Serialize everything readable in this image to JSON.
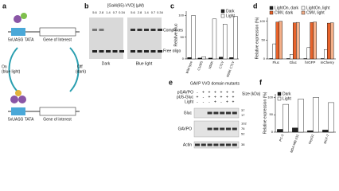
{
  "panel_a": {
    "label": "a",
    "promoter_top": "5xUASG TATA",
    "gene_top": "Gene of Interest",
    "on": "On",
    "on_note": "(blue light)",
    "off": "Off",
    "off_note": "(dark)",
    "promoter_bottom": "5xUASG TATA",
    "gene_bottom": "Gene of interest"
  },
  "panel_b": {
    "label": "b",
    "concentration_title": "[Gal4(65)-VVD] (µM)",
    "lanes": [
      "5.6",
      "2.8",
      "1.4",
      "0.7",
      "0.34"
    ],
    "gels": [
      "Dark",
      "Blue light"
    ],
    "complexes": "Complexes",
    "free_oligo": "Free oligo"
  },
  "panel_e": {
    "label": "e",
    "title": "GAVP VVD domain mutants",
    "size_title": "Size (kDa)",
    "rows": [
      {
        "name": "pGAVPO",
        "marks": [
          "-",
          "+",
          "+",
          "+",
          "+",
          "+",
          "+"
        ]
      },
      {
        "name": "pU5-Gluc",
        "marks": [
          "+",
          "-",
          "+",
          "+",
          "+",
          "+",
          "+"
        ]
      },
      {
        "name": "Light",
        "marks": [
          "-",
          "-",
          "-",
          "+",
          "-",
          "+",
          "+"
        ]
      }
    ],
    "blots": [
      {
        "name": "Gluc",
        "sizes": [
          "37",
          "17"
        ]
      },
      {
        "name": "GAVPO",
        "sizes": [
          "102",
          "76",
          "52"
        ]
      },
      {
        "name": "Actin",
        "sizes": [
          "38"
        ]
      }
    ]
  },
  "chart_data": [
    {
      "type": "bar",
      "panel": "c",
      "y_label": "Relative Fluc",
      "categories": [
        "Wild type",
        "C108S",
        "N56K",
        "C71V",
        "N56K C71V"
      ],
      "series": [
        {
          "name": "Dark",
          "color": "#222222",
          "values": [
            3,
            2,
            2,
            4,
            3
          ]
        },
        {
          "name": "Light",
          "color": "#ffffff",
          "values": [
            100,
            5,
            92,
            80,
            98
          ]
        }
      ],
      "ylim": [
        0,
        110
      ],
      "yticks": [
        0,
        50,
        100
      ],
      "rotate_labels": true
    },
    {
      "type": "bar",
      "panel": "d",
      "y_label": "Relative expression (%)",
      "categories": [
        "Fluc",
        "Gluc",
        "hrGFP",
        "mCherry"
      ],
      "series": [
        {
          "name": "LightOn, dark",
          "color": "#222222",
          "values": [
            1,
            1,
            1,
            1
          ]
        },
        {
          "name": "LightOn, light",
          "color": "#ffffff",
          "values": [
            40,
            12,
            30,
            25
          ]
        },
        {
          "name": "CMV, dark",
          "color": "#e8632b",
          "values": [
            98,
            96,
            97,
            95
          ]
        },
        {
          "name": "CMV, light",
          "color": "#f4b08a",
          "values": [
            100,
            97,
            98,
            96
          ]
        }
      ],
      "ylim": [
        0,
        110
      ],
      "yticks": [
        0,
        50,
        100
      ],
      "rotate_labels": false
    },
    {
      "type": "bar",
      "panel": "f",
      "y_label": "Relative expression (%)",
      "categories": [
        "PC-3",
        "MDA-MB-231",
        "HepG2",
        "MCF-7"
      ],
      "series": [
        {
          "name": "Dark",
          "color": "#222222",
          "values": [
            8,
            12,
            4,
            6
          ]
        },
        {
          "name": "Light",
          "color": "#ffffff",
          "values": [
            80,
            95,
            100,
            85
          ]
        }
      ],
      "ylim": [
        0,
        110
      ],
      "yticks": [
        0,
        50,
        100
      ],
      "rotate_labels": true
    }
  ]
}
